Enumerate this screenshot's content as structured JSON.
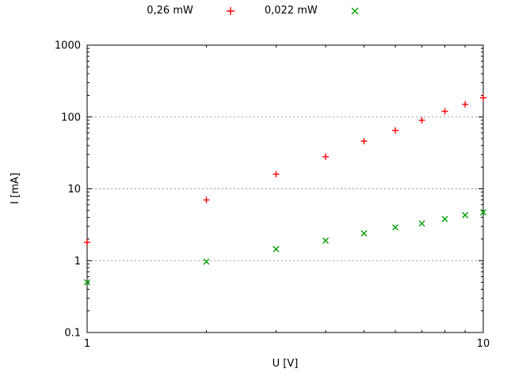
{
  "chart_data": {
    "type": "scatter",
    "title": "",
    "xlabel": "U [V]",
    "ylabel": "I [mA]",
    "xscale": "log",
    "yscale": "log",
    "xlim": [
      1,
      10
    ],
    "ylim": [
      0.1,
      1000
    ],
    "x_ticks": [
      1,
      10
    ],
    "x_tick_labels": [
      "1",
      "10"
    ],
    "x_minor_ticks": [
      2,
      3,
      4,
      5,
      6,
      7,
      8,
      9
    ],
    "y_ticks": [
      0.1,
      1,
      10,
      100,
      1000
    ],
    "y_tick_labels": [
      "0.1",
      "1",
      "10",
      "100",
      "1000"
    ],
    "grid": {
      "y_major": true,
      "style": "dashed",
      "color": "#9a9a9a"
    },
    "legend_position": "top-center-outside",
    "x": [
      1,
      2,
      3,
      4,
      5,
      6,
      7,
      8,
      9,
      10
    ],
    "series": [
      {
        "name": "0,26 mW",
        "marker": "plus",
        "color": "#ff0000",
        "values": [
          1.8,
          7,
          16,
          28,
          46,
          65,
          90,
          120,
          150,
          185
        ]
      },
      {
        "name": "0,022 mW",
        "marker": "cross",
        "color": "#00a000",
        "values": [
          0.5,
          0.97,
          1.45,
          1.9,
          2.4,
          2.9,
          3.3,
          3.8,
          4.3,
          4.7
        ]
      }
    ]
  }
}
